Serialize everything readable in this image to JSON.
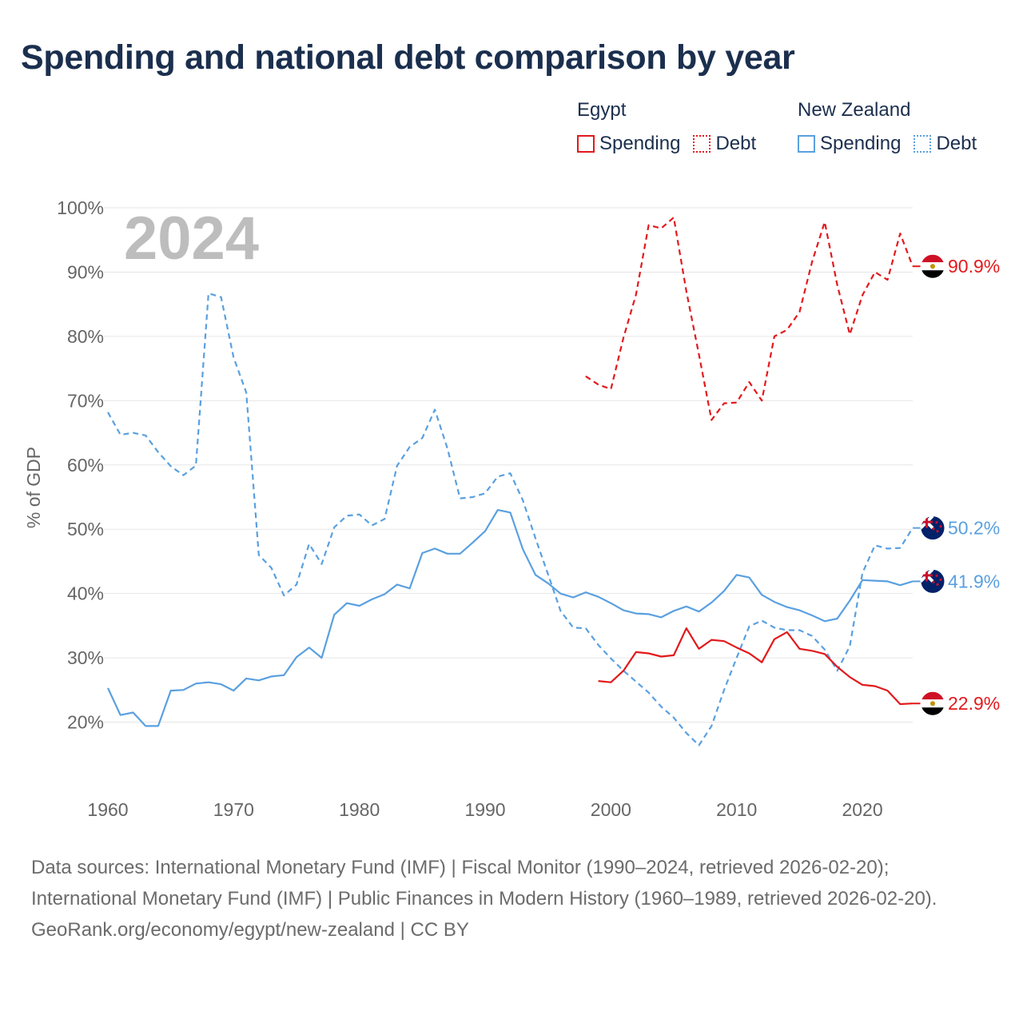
{
  "title": "Spending and national debt comparison by year",
  "legend": {
    "egypt": {
      "name": "Egypt",
      "spending": "Spending",
      "debt": "Debt"
    },
    "nz": {
      "name": "New Zealand",
      "spending": "Spending",
      "debt": "Debt"
    }
  },
  "colors": {
    "egypt": "#e3191c",
    "nz": "#5aa0e0",
    "title": "#1b2f4e",
    "axis_text": "#666666",
    "year_label": "#bdbdbd"
  },
  "year_label": "2024",
  "footer": {
    "sources": "Data sources: International Monetary Fund (IMF) | Fiscal Monitor (1990–2024, retrieved 2026-02-20); International Monetary Fund (IMF) | Public Finances in Modern History (1960–1989, retrieved 2026-02-20).",
    "credit": "GeoRank.org/economy/egypt/new-zealand | CC BY"
  },
  "chart_data": {
    "type": "line",
    "ylabel": "% of GDP",
    "xlim": [
      1960,
      2024
    ],
    "ylim": [
      10,
      100
    ],
    "x_ticks": [
      1960,
      1970,
      1980,
      1990,
      2000,
      2010,
      2020
    ],
    "y_ticks": [
      20,
      30,
      40,
      50,
      60,
      70,
      80,
      90,
      100
    ],
    "y_tick_labels": [
      "20%",
      "30%",
      "40%",
      "50%",
      "60%",
      "70%",
      "80%",
      "90%",
      "100%"
    ],
    "series": [
      {
        "name": "Egypt Debt",
        "country": "egypt",
        "style": "dashed",
        "end_label": "90.9%",
        "points": [
          [
            1998,
            73.8
          ],
          [
            1999,
            72.5
          ],
          [
            2000,
            71.8
          ],
          [
            2001,
            79.8
          ],
          [
            2002,
            86.5
          ],
          [
            2003,
            97.3
          ],
          [
            2004,
            96.8
          ],
          [
            2005,
            98.5
          ],
          [
            2006,
            87.0
          ],
          [
            2007,
            77.2
          ],
          [
            2008,
            67.0
          ],
          [
            2009,
            69.6
          ],
          [
            2010,
            69.7
          ],
          [
            2011,
            72.9
          ],
          [
            2012,
            70.0
          ],
          [
            2013,
            80.0
          ],
          [
            2014,
            81.0
          ],
          [
            2015,
            83.8
          ],
          [
            2016,
            91.6
          ],
          [
            2017,
            97.8
          ],
          [
            2018,
            88.0
          ],
          [
            2019,
            80.3
          ],
          [
            2020,
            86.4
          ],
          [
            2021,
            90.0
          ],
          [
            2022,
            88.8
          ],
          [
            2023,
            96.0
          ],
          [
            2024,
            90.9
          ]
        ]
      },
      {
        "name": "New Zealand Debt",
        "country": "nz",
        "style": "dashed",
        "end_label": "50.2%",
        "points": [
          [
            1960,
            68.2
          ],
          [
            1961,
            64.7
          ],
          [
            1962,
            65.0
          ],
          [
            1963,
            64.6
          ],
          [
            1964,
            62.0
          ],
          [
            1965,
            59.8
          ],
          [
            1966,
            58.4
          ],
          [
            1967,
            59.9
          ],
          [
            1968,
            86.7
          ],
          [
            1969,
            86.1
          ],
          [
            1970,
            76.7
          ],
          [
            1971,
            71.3
          ],
          [
            1972,
            46.0
          ],
          [
            1973,
            44.0
          ],
          [
            1974,
            39.7
          ],
          [
            1975,
            41.4
          ],
          [
            1976,
            47.7
          ],
          [
            1977,
            44.6
          ],
          [
            1978,
            50.3
          ],
          [
            1979,
            52.1
          ],
          [
            1980,
            52.3
          ],
          [
            1981,
            50.6
          ],
          [
            1982,
            51.6
          ],
          [
            1983,
            59.9
          ],
          [
            1984,
            62.8
          ],
          [
            1985,
            64.2
          ],
          [
            1986,
            68.6
          ],
          [
            1987,
            62.6
          ],
          [
            1988,
            54.8
          ],
          [
            1989,
            55.0
          ],
          [
            1990,
            55.6
          ],
          [
            1991,
            58.2
          ],
          [
            1992,
            58.7
          ],
          [
            1993,
            54.5
          ],
          [
            1994,
            48.6
          ],
          [
            1995,
            43.0
          ],
          [
            1996,
            37.3
          ],
          [
            1997,
            34.7
          ],
          [
            1998,
            34.6
          ],
          [
            1999,
            32.0
          ],
          [
            2000,
            29.9
          ],
          [
            2001,
            28.0
          ],
          [
            2002,
            26.3
          ],
          [
            2003,
            24.6
          ],
          [
            2004,
            22.4
          ],
          [
            2005,
            20.7
          ],
          [
            2006,
            18.3
          ],
          [
            2007,
            16.4
          ],
          [
            2008,
            19.4
          ],
          [
            2009,
            25.0
          ],
          [
            2010,
            30.0
          ],
          [
            2011,
            34.9
          ],
          [
            2012,
            35.8
          ],
          [
            2013,
            34.7
          ],
          [
            2014,
            34.3
          ],
          [
            2015,
            34.3
          ],
          [
            2016,
            33.4
          ],
          [
            2017,
            31.3
          ],
          [
            2018,
            28.0
          ],
          [
            2019,
            31.8
          ],
          [
            2020,
            43.2
          ],
          [
            2021,
            47.5
          ],
          [
            2022,
            47.0
          ],
          [
            2023,
            47.1
          ],
          [
            2024,
            50.2
          ]
        ]
      },
      {
        "name": "New Zealand Spending",
        "country": "nz",
        "style": "solid",
        "end_label": "41.9%",
        "points": [
          [
            1960,
            25.3
          ],
          [
            1961,
            21.1
          ],
          [
            1962,
            21.5
          ],
          [
            1963,
            19.4
          ],
          [
            1964,
            19.4
          ],
          [
            1965,
            24.9
          ],
          [
            1966,
            25.0
          ],
          [
            1967,
            26.0
          ],
          [
            1968,
            26.2
          ],
          [
            1969,
            25.9
          ],
          [
            1970,
            24.9
          ],
          [
            1971,
            26.8
          ],
          [
            1972,
            26.5
          ],
          [
            1973,
            27.1
          ],
          [
            1974,
            27.3
          ],
          [
            1975,
            30.1
          ],
          [
            1976,
            31.6
          ],
          [
            1977,
            30.0
          ],
          [
            1978,
            36.7
          ],
          [
            1979,
            38.5
          ],
          [
            1980,
            38.1
          ],
          [
            1981,
            39.1
          ],
          [
            1982,
            39.9
          ],
          [
            1983,
            41.4
          ],
          [
            1984,
            40.8
          ],
          [
            1985,
            46.3
          ],
          [
            1986,
            47.0
          ],
          [
            1987,
            46.2
          ],
          [
            1988,
            46.2
          ],
          [
            1989,
            47.9
          ],
          [
            1990,
            49.7
          ],
          [
            1991,
            53.0
          ],
          [
            1992,
            52.6
          ],
          [
            1993,
            46.9
          ],
          [
            1994,
            42.9
          ],
          [
            1995,
            41.6
          ],
          [
            1996,
            40.0
          ],
          [
            1997,
            39.4
          ],
          [
            1998,
            40.2
          ],
          [
            1999,
            39.5
          ],
          [
            2000,
            38.5
          ],
          [
            2001,
            37.4
          ],
          [
            2002,
            36.9
          ],
          [
            2003,
            36.8
          ],
          [
            2004,
            36.3
          ],
          [
            2005,
            37.3
          ],
          [
            2006,
            38.0
          ],
          [
            2007,
            37.2
          ],
          [
            2008,
            38.6
          ],
          [
            2009,
            40.4
          ],
          [
            2010,
            42.9
          ],
          [
            2011,
            42.5
          ],
          [
            2012,
            39.8
          ],
          [
            2013,
            38.7
          ],
          [
            2014,
            37.9
          ],
          [
            2015,
            37.4
          ],
          [
            2016,
            36.6
          ],
          [
            2017,
            35.7
          ],
          [
            2018,
            36.1
          ],
          [
            2019,
            38.9
          ],
          [
            2020,
            42.1
          ],
          [
            2021,
            42.0
          ],
          [
            2022,
            41.9
          ],
          [
            2023,
            41.3
          ],
          [
            2024,
            41.9
          ]
        ]
      },
      {
        "name": "Egypt Spending",
        "country": "egypt",
        "style": "solid",
        "end_label": "22.9%",
        "points": [
          [
            1999,
            26.4
          ],
          [
            2000,
            26.2
          ],
          [
            2001,
            28.0
          ],
          [
            2002,
            30.9
          ],
          [
            2003,
            30.7
          ],
          [
            2004,
            30.2
          ],
          [
            2005,
            30.4
          ],
          [
            2006,
            34.6
          ],
          [
            2007,
            31.4
          ],
          [
            2008,
            32.8
          ],
          [
            2009,
            32.6
          ],
          [
            2010,
            31.6
          ],
          [
            2011,
            30.7
          ],
          [
            2012,
            29.3
          ],
          [
            2013,
            32.9
          ],
          [
            2014,
            34.0
          ],
          [
            2015,
            31.4
          ],
          [
            2016,
            31.1
          ],
          [
            2017,
            30.6
          ],
          [
            2018,
            28.6
          ],
          [
            2019,
            27.0
          ],
          [
            2020,
            25.8
          ],
          [
            2021,
            25.6
          ],
          [
            2022,
            24.9
          ],
          [
            2023,
            22.8
          ],
          [
            2024,
            22.9
          ]
        ]
      }
    ]
  }
}
